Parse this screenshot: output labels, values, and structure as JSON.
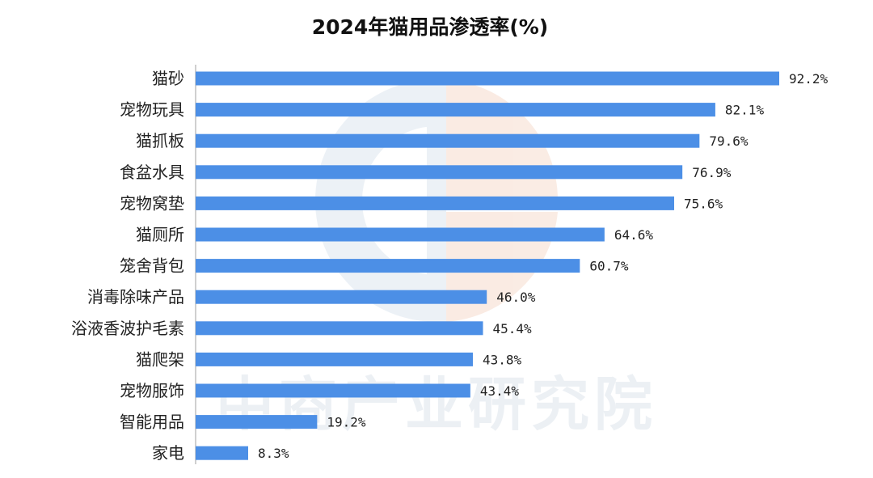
{
  "chart_data": {
    "type": "bar",
    "orientation": "horizontal",
    "title": "2024年猫用品渗透率(%)",
    "xlabel": "",
    "ylabel": "",
    "categories": [
      "猫砂",
      "宠物玩具",
      "猫抓板",
      "食盆水具",
      "宠物窝垫",
      "猫厕所",
      "笼舍背包",
      "消毒除味产品",
      "浴液香波护毛素",
      "猫爬架",
      "宠物服饰",
      "智能用品",
      "家电"
    ],
    "values": [
      92.2,
      82.1,
      79.6,
      76.9,
      75.6,
      64.6,
      60.7,
      46.0,
      45.4,
      43.8,
      43.4,
      19.2,
      8.3
    ],
    "value_labels": [
      "92.2%",
      "82.1%",
      "79.6%",
      "76.9%",
      "75.6%",
      "64.6%",
      "60.7%",
      "46.0%",
      "45.4%",
      "43.8%",
      "43.4%",
      "19.2%",
      "8.3%"
    ],
    "xlim": [
      0,
      92.2
    ],
    "grid": false,
    "legend": "none",
    "bar_color": "#4c8fe6"
  },
  "watermark": {
    "text": "中商产业研究院"
  }
}
